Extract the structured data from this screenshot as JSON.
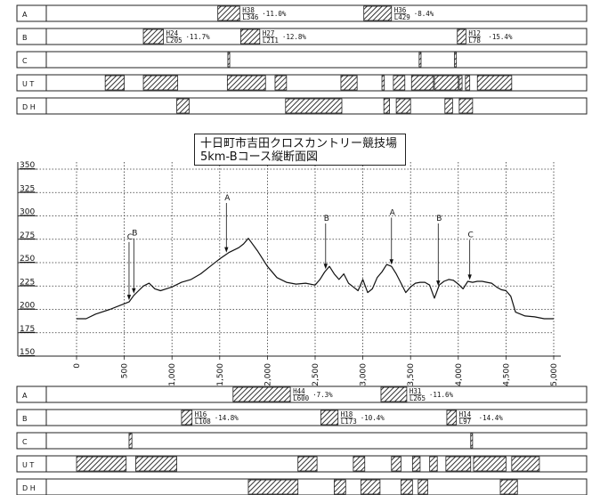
{
  "title": {
    "line1": "十日町市吉田クロスカントリー競技場",
    "line2": "5km-Bコース縦断面図"
  },
  "colors": {
    "line": "#111111",
    "grid": "#222222",
    "hatch": "#333333",
    "background": "#ffffff"
  },
  "top_bands": {
    "rows": [
      {
        "label": "A",
        "blocks": [
          [
            1480,
            1710
          ],
          [
            3010,
            3300
          ]
        ],
        "notes": [
          {
            "at": 1710,
            "h": "H38",
            "l": "L346",
            "pct": "11.0%"
          },
          {
            "at": 3300,
            "h": "H36",
            "l": "L429",
            "pct": "8.4%"
          }
        ]
      },
      {
        "label": "B",
        "blocks": [
          [
            700,
            910
          ],
          [
            1720,
            1920
          ],
          [
            3990,
            4080
          ]
        ],
        "notes": [
          {
            "at": 910,
            "h": "H24",
            "l": "L205",
            "pct": "11.7%"
          },
          {
            "at": 1920,
            "h": "H27",
            "l": "L211",
            "pct": "12.8%"
          },
          {
            "at": 4080,
            "h": "H12",
            "l": "L78",
            "pct": "15.4%"
          }
        ]
      },
      {
        "label": "C",
        "blocks": [
          [
            1585,
            1605
          ],
          [
            3590,
            3610
          ],
          [
            3960,
            3980
          ]
        ],
        "notes": []
      },
      {
        "label": "U T",
        "blocks": [
          [
            300,
            500
          ],
          [
            700,
            1060
          ],
          [
            1580,
            1980
          ],
          [
            2080,
            2200
          ],
          [
            2770,
            2940
          ],
          [
            3200,
            3225
          ],
          [
            3320,
            3440
          ],
          [
            3510,
            3740
          ],
          [
            3750,
            4000
          ],
          [
            4010,
            4040
          ],
          [
            4075,
            4120
          ],
          [
            4200,
            4560
          ]
        ],
        "notes": []
      },
      {
        "label": "D H",
        "blocks": [
          [
            1050,
            1180
          ],
          [
            2190,
            2780
          ],
          [
            3220,
            3280
          ],
          [
            3350,
            3500
          ],
          [
            3860,
            3940
          ],
          [
            4010,
            4150
          ]
        ],
        "notes": []
      }
    ]
  },
  "bottom_bands": {
    "rows": [
      {
        "label": "A",
        "blocks": [
          [
            1640,
            2240
          ],
          [
            3190,
            3460
          ]
        ],
        "notes": [
          {
            "at": 2240,
            "h": "H44",
            "l": "L600",
            "pct": "7.3%"
          },
          {
            "at": 3460,
            "h": "H31",
            "l": "L265",
            "pct": "11.6%"
          }
        ]
      },
      {
        "label": "B",
        "blocks": [
          [
            1100,
            1210
          ],
          [
            2560,
            2740
          ],
          [
            3880,
            3980
          ]
        ],
        "notes": [
          {
            "at": 1210,
            "h": "H16",
            "l": "L108",
            "pct": "14.8%"
          },
          {
            "at": 2740,
            "h": "H18",
            "l": "L173",
            "pct": "10.4%"
          },
          {
            "at": 3980,
            "h": "H14",
            "l": "L97",
            "pct": "14.4%"
          }
        ]
      },
      {
        "label": "C",
        "blocks": [
          [
            550,
            580
          ],
          [
            4130,
            4150
          ]
        ],
        "notes": []
      },
      {
        "label": "U T",
        "blocks": [
          [
            0,
            520
          ],
          [
            620,
            1050
          ],
          [
            2320,
            2520
          ],
          [
            2900,
            3020
          ],
          [
            3300,
            3400
          ],
          [
            3520,
            3600
          ],
          [
            3700,
            3780
          ],
          [
            3870,
            4130
          ],
          [
            4160,
            4500
          ],
          [
            4560,
            4850
          ]
        ],
        "notes": []
      },
      {
        "label": "D H",
        "blocks": [
          [
            1800,
            2320
          ],
          [
            2700,
            2820
          ],
          [
            2980,
            3180
          ],
          [
            3400,
            3520
          ],
          [
            3580,
            3680
          ],
          [
            4440,
            4620
          ]
        ],
        "notes": []
      }
    ]
  },
  "chart_data": {
    "type": "line",
    "title": "十日町市吉田クロスカントリー競技場 5km-Bコース縦断面図",
    "xlabel": "",
    "ylabel": "",
    "xlim": [
      0,
      5000
    ],
    "ylim": [
      150,
      350
    ],
    "x_ticks": [
      "0",
      "500",
      "1,000",
      "1,500",
      "2,000",
      "2,500",
      "3,000",
      "3,500",
      "4,000",
      "4,500",
      "5,000"
    ],
    "x_tick_values": [
      0,
      500,
      1000,
      1500,
      2000,
      2500,
      3000,
      3500,
      4000,
      4500,
      5000
    ],
    "y_ticks": [
      "350",
      "325",
      "300",
      "275",
      "250",
      "225",
      "200",
      "175",
      "150"
    ],
    "y_tick_values": [
      350,
      325,
      300,
      275,
      250,
      225,
      200,
      175,
      150
    ],
    "grid": true,
    "series": [
      {
        "x": [
          0,
          100,
          200,
          350,
          500,
          550,
          600,
          650,
          700,
          760,
          820,
          880,
          940,
          1000,
          1100,
          1200,
          1300,
          1400,
          1500,
          1600,
          1700,
          1750,
          1800,
          1900,
          2000,
          2100,
          2200,
          2300,
          2400,
          2500,
          2550,
          2600,
          2650,
          2700,
          2750,
          2800,
          2850,
          2900,
          2950,
          3000,
          3050,
          3100,
          3150,
          3200,
          3250,
          3300,
          3350,
          3400,
          3450,
          3500,
          3550,
          3600,
          3650,
          3700,
          3750,
          3800,
          3850,
          3900,
          3950,
          4000,
          4050,
          4100,
          4150,
          4200,
          4250,
          4300,
          4350,
          4400,
          4450,
          4500,
          4550,
          4600,
          4700,
          4800,
          4900,
          5000
        ],
        "y": [
          190,
          190,
          195,
          200,
          206,
          208,
          215,
          220,
          225,
          228,
          222,
          220,
          222,
          224,
          229,
          232,
          238,
          246,
          254,
          261,
          266,
          270,
          276,
          262,
          246,
          234,
          229,
          227,
          228,
          226,
          232,
          240,
          246,
          238,
          232,
          238,
          228,
          224,
          220,
          232,
          218,
          222,
          234,
          240,
          248,
          246,
          238,
          228,
          218,
          224,
          228,
          229,
          229,
          226,
          212,
          226,
          230,
          232,
          231,
          227,
          222,
          230,
          229,
          230,
          230,
          229,
          228,
          224,
          221,
          220,
          214,
          197,
          193,
          192,
          190,
          190
        ]
      }
    ],
    "annotations": [
      {
        "label": "C",
        "x": 550
      },
      {
        "label": "B",
        "x": 600
      },
      {
        "label": "A",
        "x": 1570
      },
      {
        "label": "B",
        "x": 2610
      },
      {
        "label": "A",
        "x": 3300
      },
      {
        "label": "B",
        "x": 3790
      },
      {
        "label": "C",
        "x": 4120
      }
    ]
  }
}
